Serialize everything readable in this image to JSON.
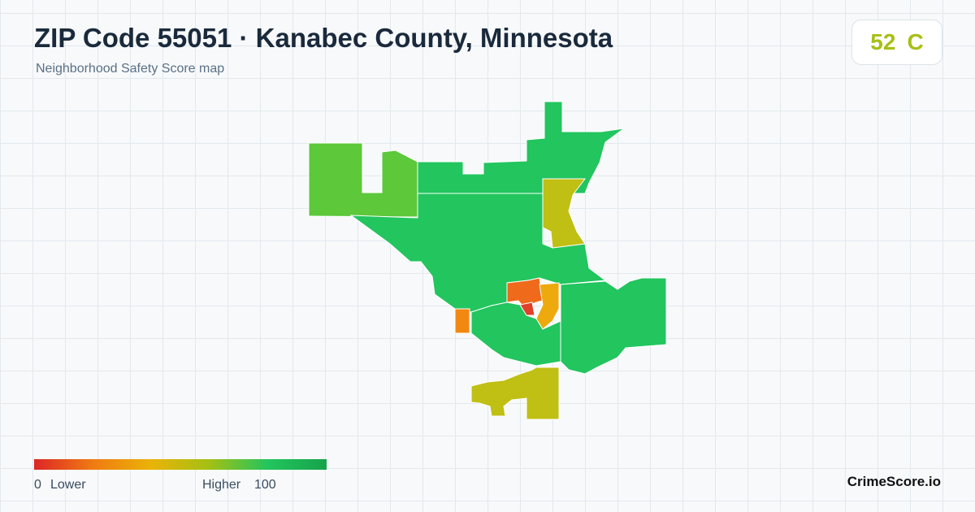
{
  "header": {
    "title": "ZIP Code 55051 · Kanabec County, Minnesota",
    "subtitle": "Neighborhood Safety Score map"
  },
  "score_badge": {
    "score": "52",
    "grade": "C"
  },
  "legend": {
    "min": "0",
    "low_label": "Lower",
    "high_label": "Higher",
    "max": "100"
  },
  "brand": "CrimeScore.io"
}
